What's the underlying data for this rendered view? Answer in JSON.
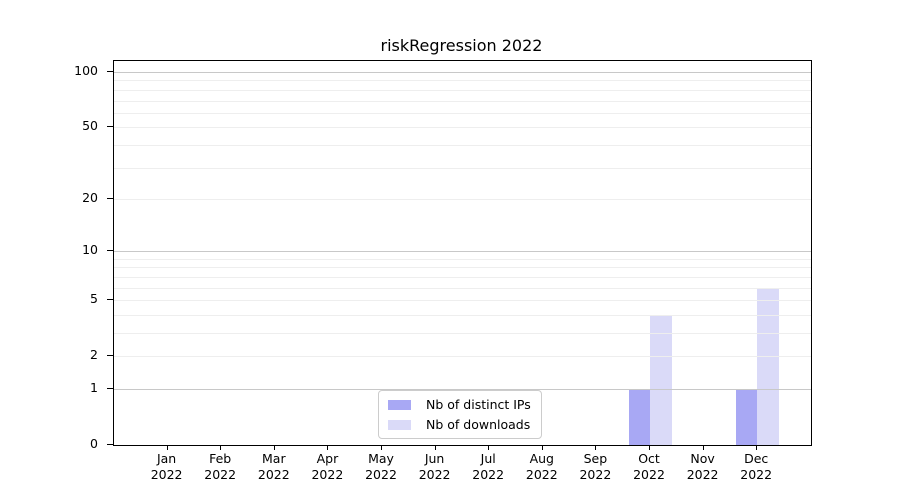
{
  "title": "riskRegression 2022",
  "colors": {
    "distinct_ips": "#a8a8f4",
    "downloads": "#dadaf8",
    "grid_minor": "#eeeeee",
    "grid_major": "#c8c8c8",
    "axis": "#000000",
    "legend_border": "#cccccc"
  },
  "legend": {
    "items": [
      {
        "label": "Nb of distinct IPs",
        "series_key": "distinct_ips"
      },
      {
        "label": "Nb of downloads",
        "series_key": "downloads"
      }
    ]
  },
  "chart_data": {
    "type": "bar",
    "title": "riskRegression 2022",
    "categories": [
      "Jan 2022",
      "Feb 2022",
      "Mar 2022",
      "Apr 2022",
      "May 2022",
      "Jun 2022",
      "Jul 2022",
      "Aug 2022",
      "Sep 2022",
      "Oct 2022",
      "Nov 2022",
      "Dec 2022"
    ],
    "x_tick_month": [
      "Jan",
      "Feb",
      "Mar",
      "Apr",
      "May",
      "Jun",
      "Jul",
      "Aug",
      "Sep",
      "Oct",
      "Nov",
      "Dec"
    ],
    "x_tick_year": "2022",
    "series": [
      {
        "name": "Nb of distinct IPs",
        "color": "#a8a8f4",
        "values": [
          0,
          0,
          0,
          0,
          0,
          0,
          0,
          0,
          0,
          1,
          0,
          1
        ]
      },
      {
        "name": "Nb of downloads",
        "color": "#dadaf8",
        "values": [
          0,
          0,
          0,
          0,
          0,
          0,
          0,
          0,
          0,
          4,
          0,
          6
        ]
      }
    ],
    "xlabel": "",
    "ylabel": "",
    "y_axis": {
      "scale": "log1p",
      "tick_values": [
        0,
        1,
        2,
        5,
        10,
        20,
        50,
        100
      ],
      "minor_grid_values": [
        2,
        3,
        4,
        5,
        6,
        7,
        8,
        9,
        20,
        30,
        40,
        50,
        60,
        70,
        80,
        90
      ],
      "major_grid_values": [
        1,
        10,
        100
      ],
      "ylim": [
        0,
        115
      ]
    },
    "grid": true,
    "legend_position": "inside-bottom-center"
  }
}
